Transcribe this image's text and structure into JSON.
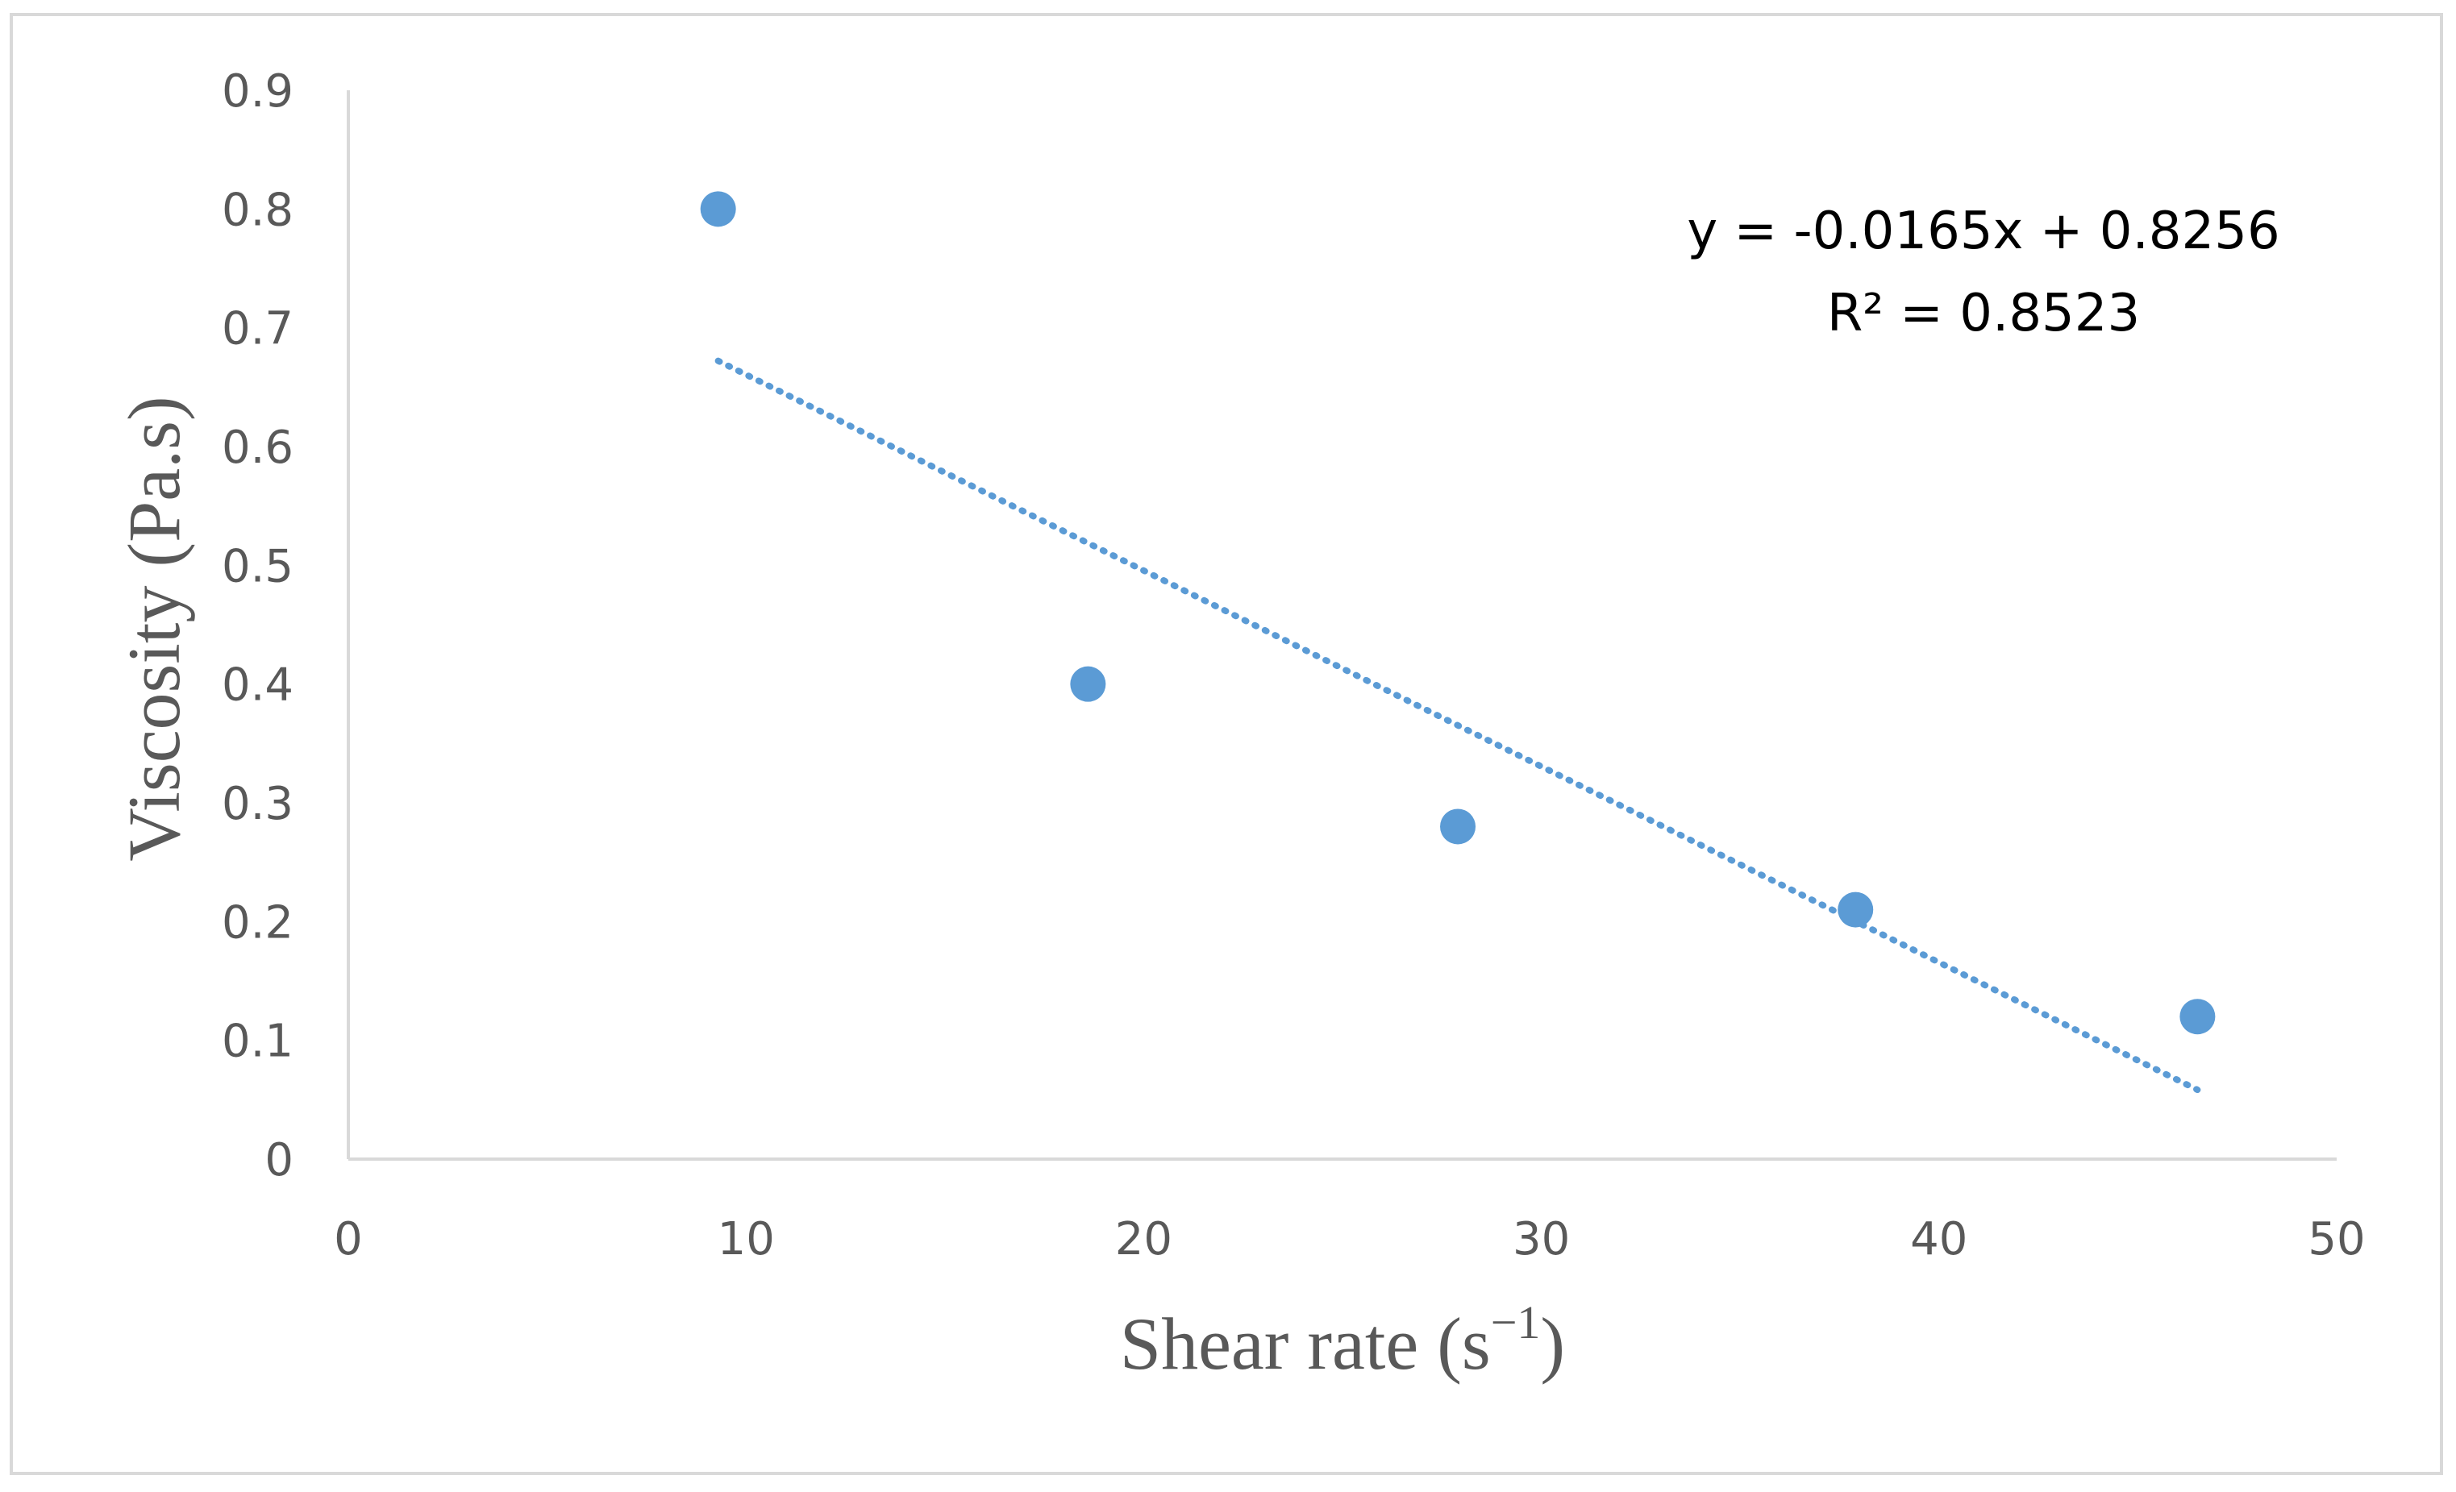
{
  "chart_data": {
    "type": "scatter",
    "title": "",
    "xlabel": "Shear rate (s",
    "xlabel_superscript": "−1",
    "xlabel_suffix": ")",
    "ylabel": "Viscosity (Pa.s)",
    "xlim": [
      0,
      50
    ],
    "ylim": [
      0,
      0.9
    ],
    "x_ticks": [
      "0",
      "10",
      "20",
      "30",
      "40",
      "50"
    ],
    "y_ticks": [
      "0",
      "0.1",
      "0.2",
      "0.3",
      "0.4",
      "0.5",
      "0.6",
      "0.7",
      "0.8",
      "0.9"
    ],
    "grid": false,
    "legend": "none",
    "series": [
      {
        "name": "Viscosity",
        "color": "#5B9BD5",
        "x": [
          9.3,
          18.6,
          27.9,
          37.9,
          46.5
        ],
        "y": [
          0.8,
          0.4,
          0.28,
          0.21,
          0.12
        ]
      }
    ],
    "trendline": {
      "type": "linear",
      "style": "dotted",
      "color": "#5B9BD5",
      "slope": -0.0165,
      "intercept": 0.8256,
      "x_range": [
        9.3,
        46.5
      ],
      "equation_label": "y = -0.0165x + 0.8256",
      "r2_label": "R² = 0.8523"
    },
    "colors": {
      "axis": "#D9D9D9",
      "text": "#595959",
      "border": "#D9D9D9"
    }
  }
}
